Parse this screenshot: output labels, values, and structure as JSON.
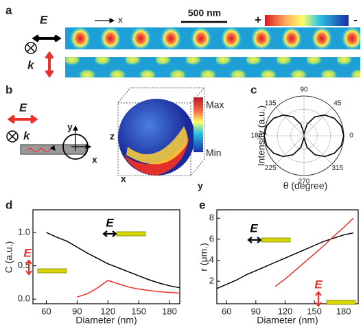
{
  "panels": {
    "a": {
      "label": "a",
      "e_label": "E",
      "k_label": "k",
      "x_label": "x",
      "scale_bar": "500 nm",
      "colorbar_plus": "+",
      "colorbar_minus": "-"
    },
    "b": {
      "label": "b",
      "e_label": "E",
      "k_label": "k",
      "axis_y": "y",
      "axis_x": "x",
      "sphere_z": "z",
      "sphere_x": "x",
      "sphere_y": "y",
      "colorbar_max": "Max",
      "colorbar_min": "Min"
    }
  },
  "chart_data": [
    {
      "type": "polar",
      "panel": "c",
      "ylabel": "Intensity (a.u.)",
      "xlabel": "θ (degree)",
      "angle_ticks": [
        0,
        45,
        90,
        135,
        180,
        225,
        270,
        315
      ],
      "rlim": [
        0,
        1
      ],
      "theta": [
        0,
        15,
        30,
        45,
        60,
        75,
        90,
        105,
        120,
        135,
        150,
        165,
        180,
        195,
        210,
        225,
        240,
        255,
        270,
        285,
        300,
        315,
        330,
        345
      ],
      "r": [
        1,
        0.97,
        0.88,
        0.74,
        0.55,
        0.3,
        0.05,
        0.3,
        0.55,
        0.74,
        0.88,
        0.97,
        1,
        0.97,
        0.88,
        0.74,
        0.55,
        0.3,
        0.05,
        0.3,
        0.55,
        0.74,
        0.88,
        0.97
      ],
      "color": "#000000"
    },
    {
      "type": "line",
      "panel": "d",
      "xlabel": "Diameter (nm)",
      "ylabel": "C (a.u.)",
      "x": [
        60,
        70,
        80,
        90,
        100,
        110,
        120,
        130,
        140,
        150,
        160,
        170,
        180,
        190
      ],
      "series": [
        {
          "name": "E",
          "color": "#000000",
          "values": [
            1.0,
            0.93,
            0.87,
            0.78,
            0.69,
            0.61,
            0.53,
            0.47,
            0.41,
            0.35,
            0.29,
            0.24,
            0.2,
            0.17
          ]
        },
        {
          "name": "E",
          "color": "#e8312a",
          "values": [
            null,
            null,
            null,
            0.03,
            0.08,
            0.17,
            0.28,
            0.23,
            0.18,
            0.15,
            0.13,
            0.11,
            0.1,
            0.09
          ]
        }
      ],
      "xlim": [
        47,
        190
      ],
      "xticks": [
        60,
        90,
        120,
        150,
        180
      ],
      "ylim": [
        -0.07,
        1.34
      ],
      "yticks": [
        {
          "value": 0,
          "label": "0.0"
        },
        {
          "value": 0.5,
          "label": "0.5"
        },
        {
          "value": 1,
          "label": "1.0"
        }
      ]
    },
    {
      "type": "line",
      "panel": "e",
      "xlabel": "Diameter (nm)",
      "ylabel": "r (μm.)",
      "x": [
        50,
        60,
        70,
        80,
        90,
        100,
        110,
        120,
        130,
        140,
        150,
        160,
        170,
        180,
        190
      ],
      "series": [
        {
          "name": "E",
          "color": "#000000",
          "values": [
            1.3,
            1.7,
            2.1,
            2.6,
            3.0,
            3.4,
            3.8,
            4.2,
            4.6,
            5.0,
            5.4,
            5.8,
            6.1,
            6.4,
            6.6
          ]
        },
        {
          "name": "E",
          "color": "#e8312a",
          "values": [
            null,
            null,
            null,
            null,
            null,
            null,
            1.5,
            2.2,
            3.0,
            3.8,
            4.6,
            5.4,
            6.3,
            7.1,
            8.0
          ]
        }
      ],
      "xlim": [
        50,
        195
      ],
      "xticks": [
        60,
        90,
        120,
        150,
        180
      ],
      "ylim": [
        -0.15,
        8.8
      ],
      "yticks": [
        2,
        4,
        6,
        8
      ]
    }
  ]
}
